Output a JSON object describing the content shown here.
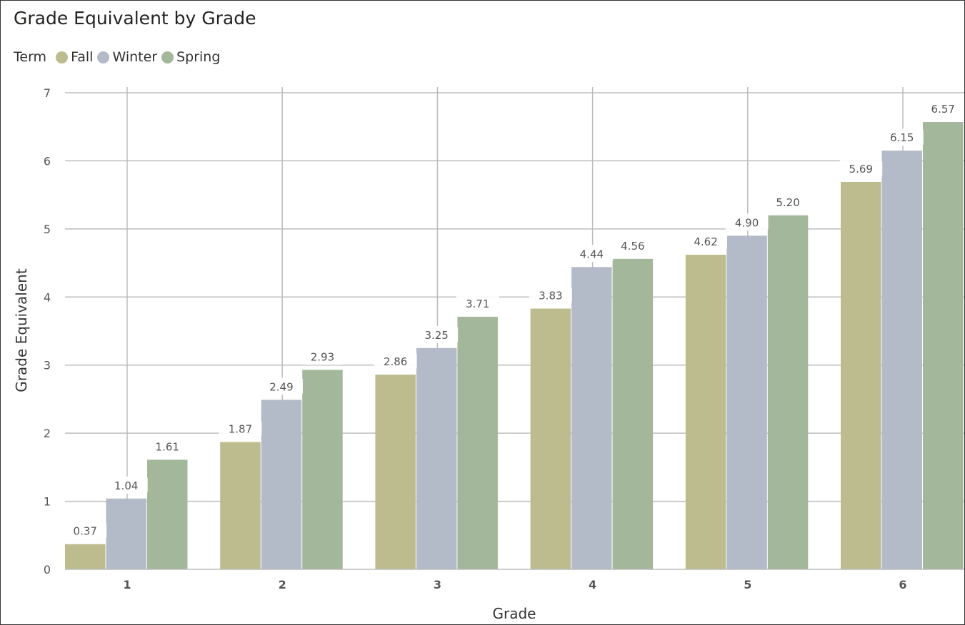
{
  "chart_data": {
    "type": "bar",
    "title": "Grade Equivalent by Grade",
    "legend": {
      "title": "Term",
      "placement": "top-left",
      "items": [
        "Fall",
        "Winter",
        "Spring"
      ]
    },
    "xlabel": "Grade",
    "ylabel": "Grade Equivalent",
    "categories": [
      "1",
      "2",
      "3",
      "4",
      "5",
      "6"
    ],
    "ylim": [
      0,
      7
    ],
    "yticks": [
      "0",
      "1",
      "2",
      "3",
      "4",
      "5",
      "6",
      "7"
    ],
    "grid": true,
    "series": [
      {
        "name": "Fall",
        "values": [
          0.37,
          1.87,
          2.86,
          3.83,
          4.62,
          5.69
        ],
        "labels": [
          "0.37",
          "1.87",
          "2.86",
          "3.83",
          "4.62",
          "5.69"
        ],
        "color": "#BCBC8E"
      },
      {
        "name": "Winter",
        "values": [
          1.04,
          2.49,
          3.25,
          4.44,
          4.9,
          6.15
        ],
        "labels": [
          "1.04",
          "2.49",
          "3.25",
          "4.44",
          "4.90",
          "6.15"
        ],
        "color": "#B3BAC8"
      },
      {
        "name": "Spring",
        "values": [
          1.61,
          2.93,
          3.71,
          4.56,
          5.2,
          6.57
        ],
        "labels": [
          "1.61",
          "2.93",
          "3.71",
          "4.56",
          "5.20",
          "6.57"
        ],
        "color": "#A3B89A"
      }
    ]
  }
}
